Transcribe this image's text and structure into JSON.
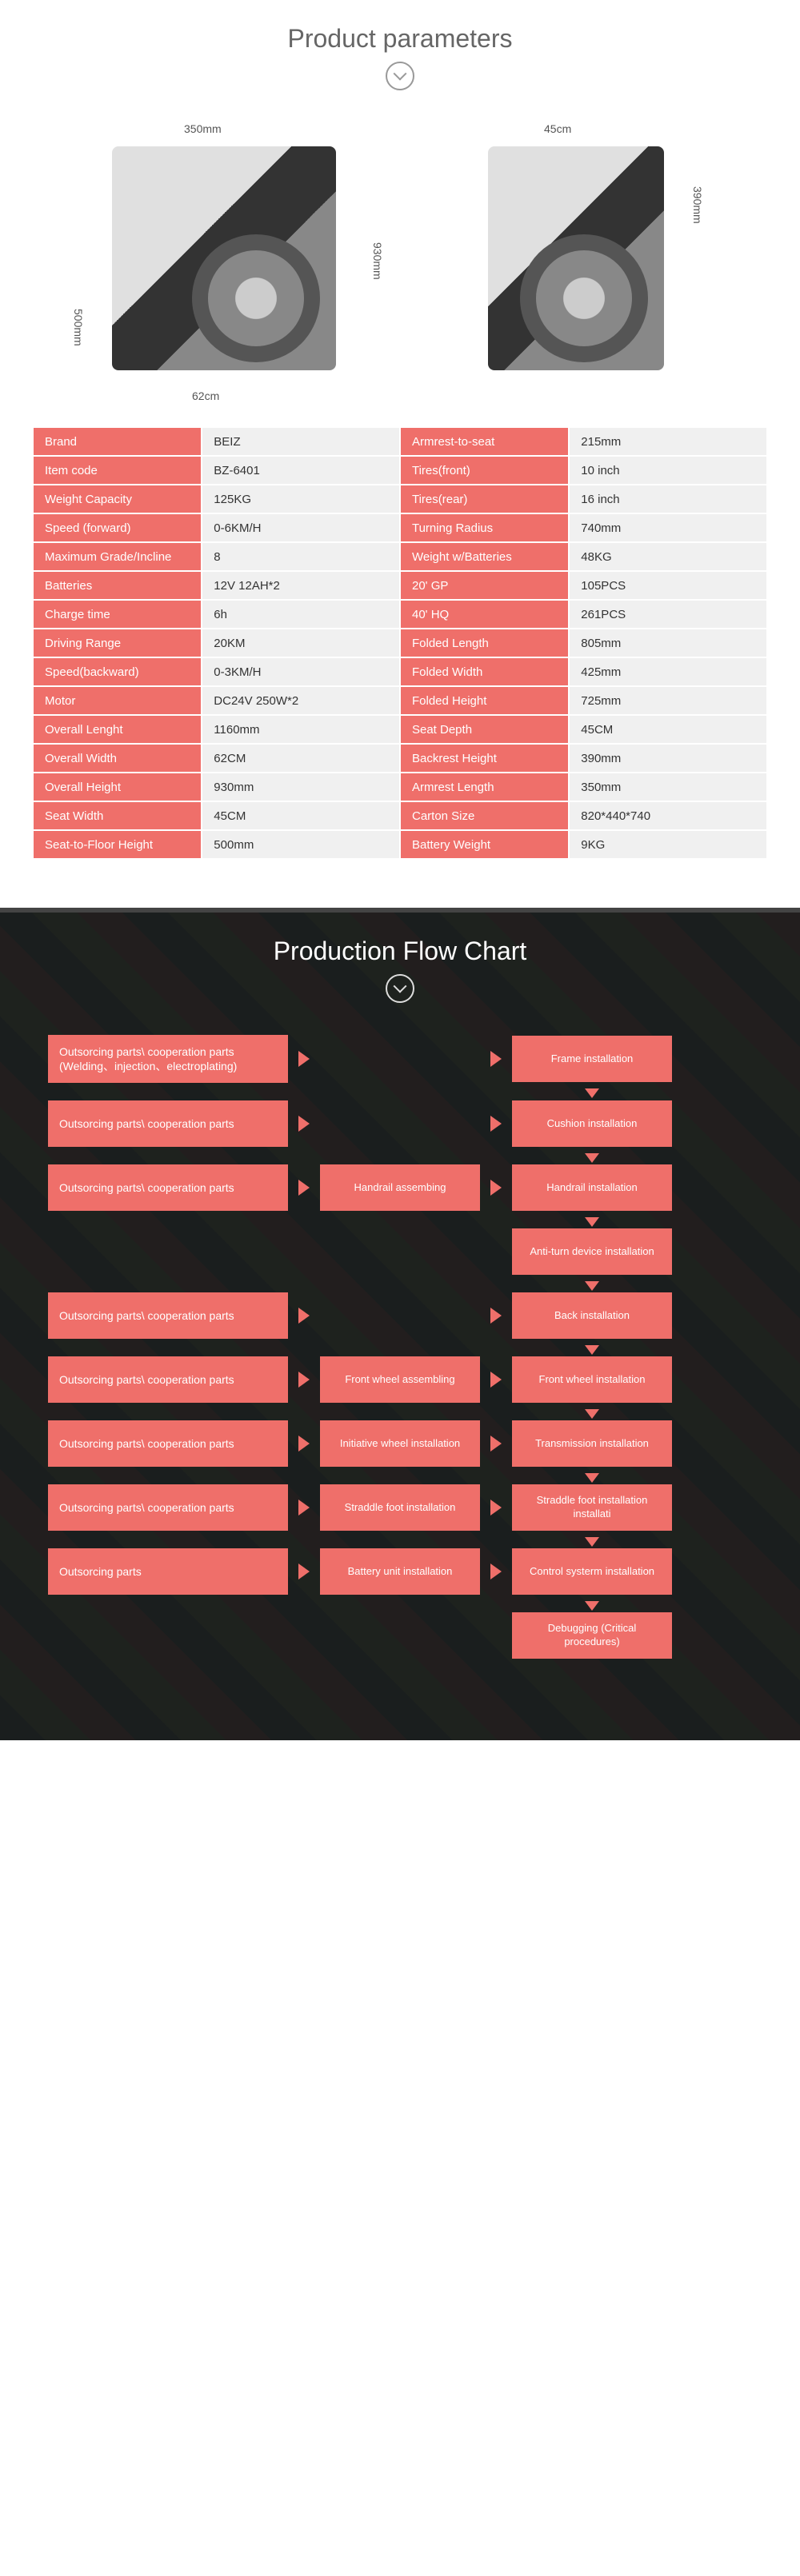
{
  "colors": {
    "accent": "#ef6f6a",
    "accent_dark": "#e85a54",
    "grey_bg": "#f0f0f0",
    "title": "#666666"
  },
  "params": {
    "title": "Product parameters",
    "dims": {
      "side_top": "350mm",
      "side_height": "930mm",
      "side_leg": "500mm",
      "side_width": "62cm",
      "rear_top": "45cm",
      "rear_height": "390mm"
    },
    "rows": [
      {
        "l1": "Brand",
        "v1": "BEIZ",
        "l2": "Armrest-to-seat",
        "v2": "215mm"
      },
      {
        "l1": "Item code",
        "v1": "BZ-6401",
        "l2": "Tires(front)",
        "v2": "10 inch"
      },
      {
        "l1": "Weight Capacity",
        "v1": "125KG",
        "l2": "Tires(rear)",
        "v2": "16 inch"
      },
      {
        "l1": "Speed (forward)",
        "v1": "0-6KM/H",
        "l2": "Turning Radius",
        "v2": "740mm"
      },
      {
        "l1": "Maximum Grade/Incline",
        "v1": "8",
        "l2": "Weight w/Batteries",
        "v2": "48KG"
      },
      {
        "l1": "Batteries",
        "v1": "12V 12AH*2",
        "l2": "20' GP",
        "v2": "105PCS"
      },
      {
        "l1": "Charge time",
        "v1": "6h",
        "l2": "40' HQ",
        "v2": "261PCS"
      },
      {
        "l1": "Driving Range",
        "v1": "20KM",
        "l2": "Folded Length",
        "v2": "805mm"
      },
      {
        "l1": "Speed(backward)",
        "v1": "0-3KM/H",
        "l2": "Folded Width",
        "v2": "425mm"
      },
      {
        "l1": "Motor",
        "v1": "DC24V 250W*2",
        "l2": "Folded Height",
        "v2": "725mm"
      },
      {
        "l1": "Overall Lenght",
        "v1": "1160mm",
        "l2": "Seat Depth",
        "v2": "45CM"
      },
      {
        "l1": "Overall Width",
        "v1": "62CM",
        "l2": "Backrest Height",
        "v2": "390mm"
      },
      {
        "l1": "Overall Height",
        "v1": "930mm",
        "l2": "Armrest Length",
        "v2": "350mm"
      },
      {
        "l1": "Seat  Width",
        "v1": "45CM",
        "l2": "Carton Size",
        "v2": "820*440*740"
      },
      {
        "l1": "Seat-to-Floor Height",
        "v1": "500mm",
        "l2": "Battery Weight",
        "v2": "9KG"
      }
    ]
  },
  "flow": {
    "title": "Production Flow Chart",
    "rows": [
      {
        "left": "Outsorcing parts\\ cooperation parts (Welding、injection、electroplating)",
        "mid": "",
        "right": "Frame installation",
        "down": true
      },
      {
        "left": "Outsorcing parts\\ cooperation parts",
        "mid": "",
        "right": "Cushion installation",
        "down": true
      },
      {
        "left": "Outsorcing parts\\ cooperation parts",
        "mid": "Handrail assembing",
        "right": "Handrail installation",
        "down": true
      },
      {
        "left": "",
        "mid": "",
        "right": "Anti-turn device installation",
        "down": true
      },
      {
        "left": "Outsorcing parts\\ cooperation parts",
        "mid": "",
        "right": "Back installation",
        "down": true
      },
      {
        "left": "Outsorcing parts\\ cooperation parts",
        "mid": "Front wheel assembling",
        "right": "Front wheel installation",
        "down": true
      },
      {
        "left": "Outsorcing parts\\ cooperation parts",
        "mid": "Initiative wheel installation",
        "right": "Transmission installation",
        "down": true
      },
      {
        "left": "Outsorcing parts\\ cooperation parts",
        "mid": "Straddle foot installation",
        "right": "Straddle foot installation installati",
        "down": true
      },
      {
        "left": "Outsorcing parts",
        "mid": "Battery unit installation",
        "right": "Control systerm installation",
        "down": true
      },
      {
        "left": "",
        "mid": "",
        "right": "Debugging (Critical procedures)",
        "down": false
      }
    ]
  }
}
